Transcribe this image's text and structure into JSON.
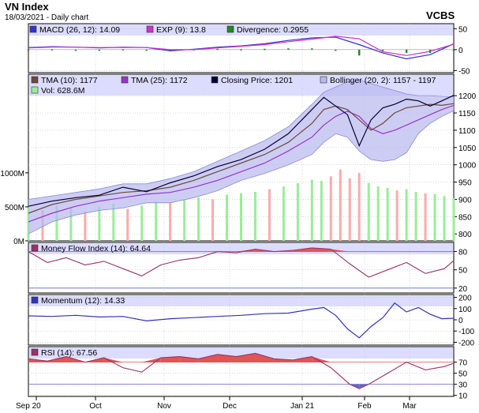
{
  "header": {
    "title": "VN Index",
    "subtitle": "18/03/2021 - Daily chart",
    "brand": "VCBS"
  },
  "colors": {
    "panel_bg": "#ffffff",
    "legend_bg": "#dcdcff",
    "grid": "#c0c0c0",
    "tma10": "#6b4a3a",
    "tma25": "#9933cc",
    "close": "#000033",
    "boll_fill": "#b8b8f0",
    "boll_edge": "#8a8ad8",
    "vol_up": "#99ee99",
    "vol_down": "#ffaaaa",
    "macd": "#3333cc",
    "exp": "#cc33cc",
    "div": "#228822",
    "mfi": "#993366",
    "mom": "#3333bb",
    "rsi": "#993366",
    "hot": "#e05555",
    "cold": "#6666cc"
  },
  "x_labels": [
    "Sep 20",
    "Oct",
    "Nov",
    "Dec",
    "Jan 21",
    "Feb",
    "Mar"
  ],
  "chart_data": [
    {
      "type": "line",
      "panel": "macd",
      "legend": [
        "MACD (26, 12): 14.09",
        "EXP (9): 13.8",
        "Divergence: 0.2955"
      ],
      "ylim": [
        -55,
        62
      ],
      "yticks": [
        50,
        0,
        -50
      ],
      "x": [
        0,
        10,
        20,
        30,
        40,
        50,
        60,
        70,
        80,
        90,
        100,
        110,
        120,
        130,
        140,
        150,
        160,
        170,
        180
      ],
      "series": [
        {
          "name": "MACD (26, 12)",
          "values": [
            5,
            7,
            6,
            4,
            6,
            5,
            -3,
            1,
            6,
            9,
            14,
            22,
            28,
            30,
            12,
            -8,
            -22,
            -12,
            14
          ]
        },
        {
          "name": "EXP (9)",
          "values": [
            4,
            6,
            6,
            5,
            5,
            5,
            0,
            0,
            4,
            8,
            12,
            19,
            25,
            32,
            26,
            -5,
            -14,
            -4,
            13
          ]
        },
        {
          "name": "Divergence",
          "values": [
            1,
            1,
            0,
            -1,
            1,
            0,
            -3,
            1,
            2,
            1,
            2,
            3,
            3,
            -2,
            -14,
            -3,
            -8,
            -8,
            0
          ]
        }
      ]
    },
    {
      "type": "line",
      "panel": "price",
      "legend": [
        "TMA (10): 1177",
        "TMA (25): 1172",
        "Closing Price: 1201",
        "Bollinger (20, 2): 1157 - 1197",
        "Vol: 628.6M"
      ],
      "ylim": [
        780,
        1262
      ],
      "yticks": [
        800,
        850,
        900,
        950,
        1000,
        1050,
        1100,
        1150,
        1200
      ],
      "vol_ticks": [
        {
          "label": "1000M",
          "value": 1000
        },
        {
          "label": "500M",
          "value": 500
        },
        {
          "label": "0M",
          "value": 0
        }
      ],
      "vol_max": 2450,
      "x": [
        0,
        10,
        20,
        30,
        40,
        50,
        60,
        70,
        80,
        90,
        100,
        110,
        120,
        125,
        130,
        135,
        140,
        145,
        150,
        155,
        160,
        165,
        170,
        175,
        180
      ],
      "series": [
        {
          "name": "Closing Price",
          "values": [
            880,
            895,
            905,
            912,
            935,
            922,
            948,
            968,
            995,
            1015,
            1045,
            1090,
            1160,
            1195,
            1170,
            1145,
            1055,
            1130,
            1165,
            1175,
            1190,
            1185,
            1170,
            1185,
            1201
          ]
        },
        {
          "name": "TMA (10)",
          "values": [
            860,
            885,
            900,
            910,
            920,
            925,
            935,
            955,
            980,
            1005,
            1030,
            1065,
            1120,
            1160,
            1170,
            1160,
            1130,
            1100,
            1120,
            1150,
            1165,
            1170,
            1175,
            1172,
            1177
          ]
        },
        {
          "name": "TMA (25)",
          "values": [
            835,
            860,
            880,
            895,
            905,
            915,
            920,
            935,
            955,
            980,
            1005,
            1040,
            1080,
            1115,
            1140,
            1155,
            1140,
            1105,
            1090,
            1100,
            1115,
            1130,
            1145,
            1160,
            1172
          ]
        },
        {
          "name": "Bollinger (20, 2) upper",
          "values": [
            900,
            910,
            920,
            930,
            945,
            945,
            960,
            980,
            1010,
            1040,
            1070,
            1110,
            1175,
            1210,
            1225,
            1240,
            1245,
            1235,
            1225,
            1215,
            1205,
            1200,
            1200,
            1198,
            1197
          ]
        },
        {
          "name": "Bollinger (20, 2) lower",
          "values": [
            800,
            835,
            855,
            868,
            875,
            890,
            890,
            905,
            925,
            955,
            975,
            1000,
            1030,
            1065,
            1090,
            1080,
            1040,
            1015,
            1010,
            1015,
            1035,
            1090,
            1120,
            1140,
            1157
          ]
        }
      ],
      "volume": [
        {
          "x": 0,
          "value": 500,
          "up": true
        },
        {
          "x": 6,
          "value": 450,
          "up": false
        },
        {
          "x": 12,
          "value": 520,
          "up": true
        },
        {
          "x": 18,
          "value": 480,
          "up": true
        },
        {
          "x": 24,
          "value": 430,
          "up": false
        },
        {
          "x": 30,
          "value": 500,
          "up": true
        },
        {
          "x": 36,
          "value": 550,
          "up": true
        },
        {
          "x": 42,
          "value": 470,
          "up": false
        },
        {
          "x": 48,
          "value": 520,
          "up": true
        },
        {
          "x": 54,
          "value": 580,
          "up": true
        },
        {
          "x": 60,
          "value": 560,
          "up": false
        },
        {
          "x": 66,
          "value": 600,
          "up": true
        },
        {
          "x": 72,
          "value": 640,
          "up": true
        },
        {
          "x": 78,
          "value": 610,
          "up": false
        },
        {
          "x": 84,
          "value": 680,
          "up": true
        },
        {
          "x": 90,
          "value": 700,
          "up": true
        },
        {
          "x": 96,
          "value": 720,
          "up": true
        },
        {
          "x": 102,
          "value": 760,
          "up": false
        },
        {
          "x": 108,
          "value": 800,
          "up": true
        },
        {
          "x": 114,
          "value": 850,
          "up": true
        },
        {
          "x": 120,
          "value": 900,
          "up": true
        },
        {
          "x": 124,
          "value": 880,
          "up": true
        },
        {
          "x": 128,
          "value": 950,
          "up": false
        },
        {
          "x": 132,
          "value": 1050,
          "up": false
        },
        {
          "x": 136,
          "value": 920,
          "up": false
        },
        {
          "x": 140,
          "value": 1000,
          "up": false
        },
        {
          "x": 144,
          "value": 850,
          "up": true
        },
        {
          "x": 148,
          "value": 800,
          "up": true
        },
        {
          "x": 152,
          "value": 780,
          "up": true
        },
        {
          "x": 156,
          "value": 740,
          "up": false
        },
        {
          "x": 160,
          "value": 760,
          "up": true
        },
        {
          "x": 164,
          "value": 720,
          "up": true
        },
        {
          "x": 168,
          "value": 700,
          "up": false
        },
        {
          "x": 172,
          "value": 690,
          "up": true
        },
        {
          "x": 176,
          "value": 660,
          "up": true
        },
        {
          "x": 180,
          "value": 629,
          "up": true
        }
      ]
    },
    {
      "type": "line",
      "panel": "mfi",
      "legend": [
        "Money Flow Index (14): 64.64"
      ],
      "ylim": [
        12,
        95
      ],
      "yticks": [
        80,
        50,
        20
      ],
      "overbought": 80,
      "oversold": 20,
      "x": [
        0,
        8,
        16,
        24,
        32,
        40,
        48,
        56,
        64,
        72,
        80,
        88,
        96,
        104,
        112,
        120,
        128,
        136,
        144,
        152,
        160,
        168,
        176,
        180
      ],
      "series": [
        {
          "name": "Money Flow Index (14)",
          "values": [
            80,
            62,
            70,
            58,
            64,
            52,
            40,
            58,
            66,
            70,
            80,
            78,
            84,
            80,
            82,
            86,
            84,
            60,
            38,
            50,
            62,
            44,
            52,
            65
          ]
        }
      ]
    },
    {
      "type": "line",
      "panel": "momentum",
      "legend": [
        "Momentum (12): 14.33"
      ],
      "ylim": [
        -225,
        225
      ],
      "yticks": [
        200,
        100,
        0,
        -100,
        -200
      ],
      "x": [
        0,
        10,
        20,
        30,
        40,
        50,
        60,
        70,
        80,
        90,
        100,
        110,
        120,
        125,
        130,
        135,
        140,
        145,
        150,
        155,
        160,
        165,
        170,
        175,
        180
      ],
      "series": [
        {
          "name": "Momentum (12)",
          "values": [
            35,
            30,
            40,
            25,
            30,
            -10,
            10,
            20,
            30,
            40,
            55,
            60,
            95,
            110,
            40,
            -80,
            -160,
            -60,
            20,
            150,
            70,
            110,
            50,
            10,
            14
          ]
        }
      ]
    },
    {
      "type": "line",
      "panel": "rsi",
      "legend": [
        "RSI (14): 67.56"
      ],
      "ylim": [
        8,
        98
      ],
      "yticks": [
        70,
        50,
        30,
        10
      ],
      "overbought": 70,
      "oversold": 30,
      "x": [
        0,
        8,
        16,
        24,
        32,
        40,
        48,
        56,
        64,
        72,
        80,
        88,
        96,
        104,
        112,
        120,
        128,
        136,
        140,
        144,
        152,
        160,
        168,
        176,
        180
      ],
      "series": [
        {
          "name": "RSI (14)",
          "values": [
            76,
            72,
            80,
            70,
            78,
            60,
            52,
            78,
            80,
            76,
            84,
            80,
            86,
            76,
            74,
            80,
            60,
            30,
            22,
            30,
            50,
            70,
            56,
            62,
            68
          ]
        }
      ]
    }
  ]
}
